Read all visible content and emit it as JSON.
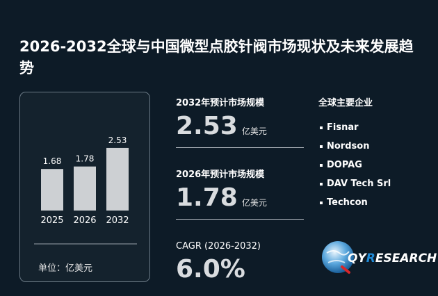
{
  "title": "2026-2032全球与中国微型点胶针阀市场现状及未来发展趋势",
  "chart_data": {
    "type": "bar",
    "categories": [
      "2025",
      "2026",
      "2032"
    ],
    "values": [
      1.68,
      1.78,
      2.53
    ],
    "value_labels": [
      "1.68",
      "1.78",
      "2.53"
    ],
    "unit": "单位：亿美元",
    "color": "#cdd0d3"
  },
  "stats": {
    "market_2032": {
      "label": "2032年预计市场规模",
      "value": "2.53",
      "unit": "亿美元"
    },
    "market_2026": {
      "label": "2026年预计市场规模",
      "value": "1.78",
      "unit": "亿美元"
    },
    "cagr": {
      "label": "CAGR (2026-2032)",
      "value": "6.0%"
    }
  },
  "companies": {
    "title": "全球主要企业",
    "items": [
      "Fisnar",
      "Nordson",
      "DOPAG",
      "DAV Tech Srl",
      "Techcon"
    ]
  },
  "logo": {
    "brand_text_1": "QY",
    "brand_text_2": "R",
    "brand_text_3": "ESEARCH",
    "accent": "#1f8ad6"
  }
}
